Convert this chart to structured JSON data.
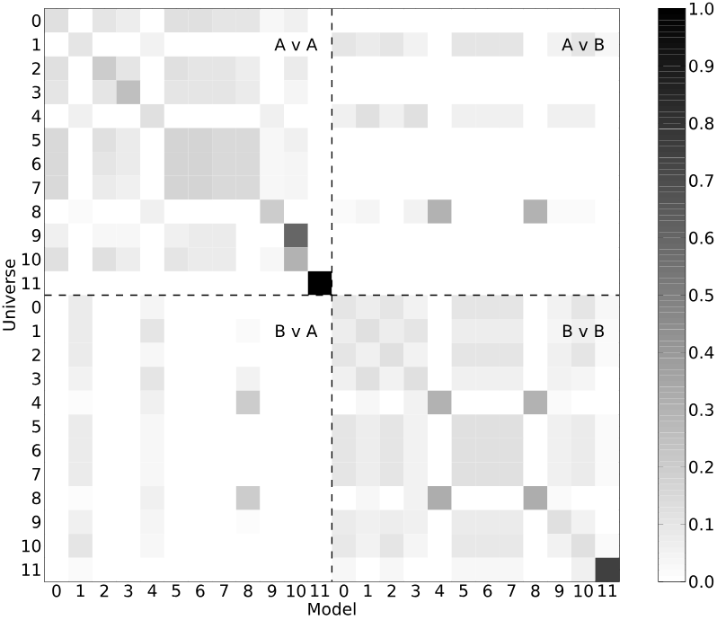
{
  "chart_data": {
    "type": "heatmap",
    "xlabel": "Model",
    "ylabel": "Universe",
    "categories": [
      "0",
      "1",
      "2",
      "3",
      "4",
      "5",
      "6",
      "7",
      "8",
      "9",
      "10",
      "11",
      "0",
      "1",
      "2",
      "3",
      "4",
      "5",
      "6",
      "7",
      "8",
      "9",
      "10",
      "11"
    ],
    "y_categories": [
      "0",
      "1",
      "2",
      "3",
      "4",
      "5",
      "6",
      "7",
      "8",
      "9",
      "10",
      "11",
      "0",
      "1",
      "2",
      "3",
      "4",
      "5",
      "6",
      "7",
      "8",
      "9",
      "10",
      "11"
    ],
    "cells": [
      [
        0.12,
        0,
        0.1,
        0.07,
        0,
        0.12,
        0.12,
        0.1,
        0.1,
        0.03,
        0.06,
        0,
        0,
        0,
        0,
        0,
        0,
        0,
        0,
        0,
        0,
        0,
        0,
        0
      ],
      [
        0,
        0.1,
        0,
        0,
        0.05,
        0,
        0,
        0,
        0,
        0,
        0,
        0,
        0.1,
        0.08,
        0.1,
        0.05,
        0,
        0.1,
        0.1,
        0.1,
        0,
        0.05,
        0.1,
        0.03
      ],
      [
        0.12,
        0,
        0.2,
        0.1,
        0,
        0.12,
        0.1,
        0.1,
        0.07,
        0,
        0.08,
        0,
        0,
        0,
        0,
        0,
        0,
        0,
        0,
        0,
        0,
        0,
        0,
        0
      ],
      [
        0.1,
        0,
        0.1,
        0.25,
        0,
        0.1,
        0.1,
        0.1,
        0.08,
        0,
        0.04,
        0,
        0,
        0,
        0,
        0,
        0,
        0,
        0,
        0,
        0,
        0,
        0,
        0
      ],
      [
        0,
        0.06,
        0,
        0,
        0.12,
        0,
        0,
        0,
        0,
        0.06,
        0,
        0,
        0.06,
        0.12,
        0.06,
        0.12,
        0,
        0.06,
        0.06,
        0.06,
        0,
        0.06,
        0.06,
        0
      ],
      [
        0.15,
        0,
        0.12,
        0.08,
        0,
        0.17,
        0.17,
        0.15,
        0.15,
        0.03,
        0.06,
        0,
        0,
        0,
        0,
        0,
        0,
        0,
        0,
        0,
        0,
        0,
        0,
        0
      ],
      [
        0.15,
        0,
        0.1,
        0.08,
        0,
        0.17,
        0.17,
        0.15,
        0.15,
        0.03,
        0.04,
        0,
        0,
        0,
        0,
        0,
        0,
        0,
        0,
        0,
        0,
        0,
        0,
        0
      ],
      [
        0.15,
        0,
        0.08,
        0.06,
        0,
        0.17,
        0.17,
        0.15,
        0.15,
        0.03,
        0.04,
        0,
        0,
        0,
        0,
        0,
        0,
        0,
        0,
        0,
        0,
        0,
        0,
        0
      ],
      [
        0,
        0.02,
        0,
        0,
        0.06,
        0,
        0,
        0,
        0,
        0.2,
        0,
        0,
        0.02,
        0.04,
        0,
        0.05,
        0.3,
        0,
        0,
        0,
        0.3,
        0.02,
        0.02,
        0
      ],
      [
        0.06,
        0,
        0.03,
        0.03,
        0,
        0.06,
        0.08,
        0.08,
        0,
        0,
        0.6,
        0,
        0,
        0,
        0,
        0,
        0,
        0,
        0,
        0,
        0,
        0,
        0,
        0
      ],
      [
        0.12,
        0,
        0.12,
        0.07,
        0,
        0.1,
        0.08,
        0.08,
        0,
        0.03,
        0.3,
        0,
        0,
        0,
        0,
        0,
        0,
        0,
        0,
        0,
        0,
        0,
        0,
        0
      ],
      [
        0,
        0,
        0,
        0,
        0,
        0,
        0,
        0,
        0,
        0,
        0,
        1.0,
        0,
        0,
        0,
        0,
        0,
        0,
        0,
        0,
        0,
        0,
        0,
        0
      ],
      [
        0,
        0.08,
        0,
        0,
        0.04,
        0,
        0,
        0,
        0,
        0,
        0,
        0,
        0.1,
        0.07,
        0.1,
        0.05,
        0,
        0.1,
        0.1,
        0.1,
        0,
        0.05,
        0.1,
        0.03
      ],
      [
        0,
        0.08,
        0,
        0,
        0.1,
        0,
        0,
        0,
        0.02,
        0,
        0,
        0,
        0.07,
        0.12,
        0.07,
        0.1,
        0,
        0.07,
        0.07,
        0.07,
        0,
        0.04,
        0.06,
        0.02
      ],
      [
        0,
        0.08,
        0,
        0,
        0.03,
        0,
        0,
        0,
        0,
        0,
        0,
        0,
        0.1,
        0.06,
        0.12,
        0.05,
        0,
        0.1,
        0.1,
        0.1,
        0,
        0.06,
        0.1,
        0.02
      ],
      [
        0,
        0.05,
        0,
        0,
        0.1,
        0,
        0,
        0,
        0.05,
        0,
        0,
        0,
        0.06,
        0.12,
        0.05,
        0.12,
        0,
        0.06,
        0.06,
        0.06,
        0,
        0.05,
        0.04,
        0
      ],
      [
        0,
        0.01,
        0,
        0,
        0.06,
        0,
        0,
        0,
        0.2,
        0,
        0,
        0,
        0,
        0.03,
        0,
        0.05,
        0.3,
        0,
        0,
        0,
        0.3,
        0.02,
        0,
        0
      ],
      [
        0,
        0.08,
        0,
        0,
        0.03,
        0,
        0,
        0,
        0,
        0,
        0,
        0,
        0.1,
        0.07,
        0.1,
        0.05,
        0,
        0.12,
        0.12,
        0.12,
        0,
        0.06,
        0.08,
        0.02
      ],
      [
        0,
        0.08,
        0,
        0,
        0.03,
        0,
        0,
        0,
        0,
        0,
        0,
        0,
        0.1,
        0.07,
        0.1,
        0.05,
        0,
        0.12,
        0.12,
        0.12,
        0,
        0.06,
        0.08,
        0.02
      ],
      [
        0,
        0.08,
        0,
        0,
        0.03,
        0,
        0,
        0,
        0,
        0,
        0,
        0,
        0.1,
        0.07,
        0.1,
        0.05,
        0,
        0.12,
        0.12,
        0.12,
        0,
        0.06,
        0.08,
        0.02
      ],
      [
        0,
        0.01,
        0,
        0,
        0.06,
        0,
        0,
        0,
        0.2,
        0,
        0,
        0,
        0,
        0.03,
        0,
        0.05,
        0.32,
        0,
        0,
        0,
        0.32,
        0.02,
        0,
        0
      ],
      [
        0,
        0.06,
        0,
        0,
        0.04,
        0,
        0,
        0,
        0.01,
        0,
        0,
        0,
        0.08,
        0.06,
        0.07,
        0.06,
        0,
        0.08,
        0.08,
        0.08,
        0,
        0.12,
        0.05,
        0
      ],
      [
        0,
        0.1,
        0,
        0,
        0.03,
        0,
        0,
        0,
        0,
        0,
        0,
        0,
        0.09,
        0.05,
        0.1,
        0.04,
        0,
        0.09,
        0.09,
        0.09,
        0,
        0.05,
        0.12,
        0.02
      ],
      [
        0,
        0.02,
        0,
        0,
        0,
        0,
        0,
        0,
        0,
        0,
        0,
        0,
        0.03,
        0,
        0.03,
        0,
        0,
        0.03,
        0.03,
        0.03,
        0,
        0,
        0.06,
        0.75
      ]
    ],
    "clim": [
      0.0,
      1.0
    ],
    "cticks": [
      {
        "value": 0,
        "label": "0.0"
      },
      {
        "value": 0.1,
        "label": "0.1"
      },
      {
        "value": 0.2,
        "label": "0.2"
      },
      {
        "value": 0.3,
        "label": "0.3"
      },
      {
        "value": 0.4,
        "label": "0.4"
      },
      {
        "value": 0.5,
        "label": "0.5"
      },
      {
        "value": 0.6,
        "label": "0.6"
      },
      {
        "value": 0.7,
        "label": "0.7"
      },
      {
        "value": 0.8,
        "label": "0.8"
      },
      {
        "value": 0.9,
        "label": "0.9"
      },
      {
        "value": 1,
        "label": "1.0"
      }
    ],
    "annotations": [
      "A v A",
      "A v B",
      "B v A",
      "B v B"
    ]
  }
}
